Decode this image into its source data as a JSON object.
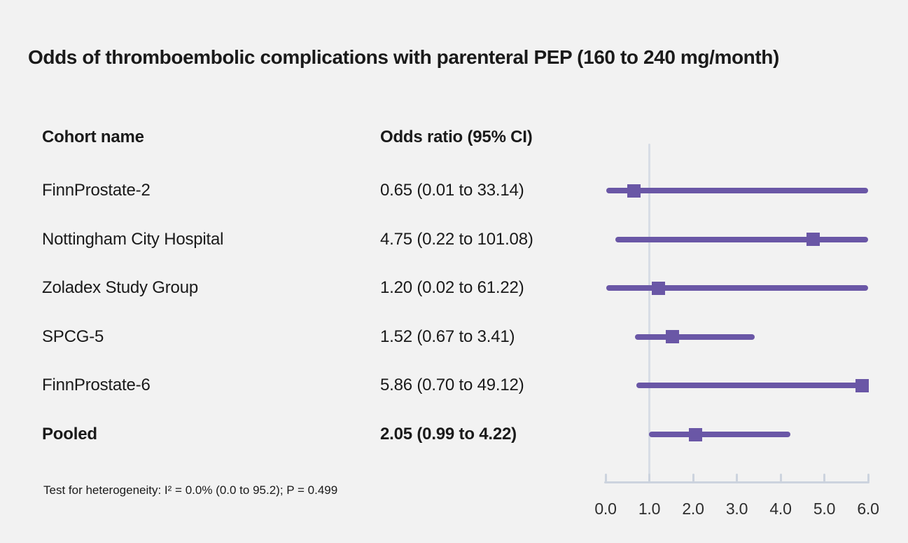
{
  "page": {
    "title": "Odds of thromboembolic complications with parenteral PEP (160 to 240 mg/month)",
    "footnote": "Test for heterogeneity: I² = 0.0% (0.0 to 95.2); P = 0.499"
  },
  "table": {
    "cohort_header": "Cohort name",
    "or_header": "Odds ratio (95% CI)"
  },
  "colors": {
    "background": "#f2f2f2",
    "marker_purple": "#6a57a6",
    "axis_gray": "#ccd3de",
    "reference_line_gray": "#d8dde6",
    "text": "#1a1a1a"
  },
  "chart_data": {
    "type": "forest",
    "title": "Odds of thromboembolic complications with parenteral PEP (160 to 240 mg/month)",
    "xlim": [
      0,
      6
    ],
    "x_ticks": [
      0,
      1,
      2,
      3,
      4,
      5,
      6
    ],
    "x_tick_labels": [
      "0.0",
      "1.0",
      "2.0",
      "3.0",
      "4.0",
      "5.0",
      "6.0"
    ],
    "reference_line_x": 1.0,
    "grid": false,
    "legend": "none",
    "rows": [
      {
        "label": "FinnProstate-2",
        "or_text": "0.65 (0.01 to 33.14)",
        "or": 0.65,
        "ci_low": 0.01,
        "ci_high": 33.14,
        "bold": false
      },
      {
        "label": "Nottingham City Hospital",
        "or_text": "4.75 (0.22 to 101.08)",
        "or": 4.75,
        "ci_low": 0.22,
        "ci_high": 101.08,
        "bold": false
      },
      {
        "label": "Zoladex Study Group",
        "or_text": "1.20 (0.02 to 61.22)",
        "or": 1.2,
        "ci_low": 0.02,
        "ci_high": 61.22,
        "bold": false
      },
      {
        "label": "SPCG-5",
        "or_text": "1.52 (0.67 to 3.41)",
        "or": 1.52,
        "ci_low": 0.67,
        "ci_high": 3.41,
        "bold": false
      },
      {
        "label": "FinnProstate-6",
        "or_text": "5.86 (0.70 to 49.12)",
        "or": 5.86,
        "ci_low": 0.7,
        "ci_high": 49.12,
        "bold": false
      },
      {
        "label": "Pooled",
        "or_text": "2.05 (0.99 to 4.22)",
        "or": 2.05,
        "ci_low": 0.99,
        "ci_high": 4.22,
        "bold": true
      }
    ],
    "footnote": "Test for heterogeneity: I² = 0.0% (0.0 to 95.2); P = 0.499"
  }
}
